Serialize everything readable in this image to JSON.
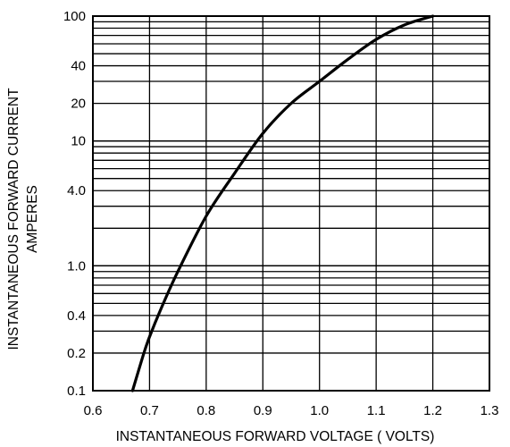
{
  "chart_data": {
    "type": "line",
    "title": "",
    "xlabel": "INSTANTANEOUS FORWARD VOLTAGE ( VOLTS)",
    "ylabel_line1": "INSTANTANEOUS FORWARD CURRENT",
    "ylabel_line2": "AMPERES",
    "xlim": [
      0.6,
      1.3
    ],
    "ylim": [
      0.1,
      100
    ],
    "yscale": "log",
    "grid": true,
    "x_ticks": [
      0.6,
      0.7,
      0.8,
      0.9,
      1.0,
      1.1,
      1.2,
      1.3
    ],
    "x_tick_labels": [
      "0.6",
      "0.7",
      "0.8",
      "0.9",
      "1.0",
      "1.1",
      "1.2",
      "1.3"
    ],
    "y_ticks": [
      0.1,
      0.2,
      0.4,
      1.0,
      4.0,
      10,
      20,
      40,
      100
    ],
    "y_tick_labels": [
      "0.1",
      "0.2",
      "0.4",
      "1.0",
      "4.0",
      "10",
      "20",
      "40",
      "100"
    ],
    "series": [
      {
        "x": [
          0.67,
          0.69,
          0.7,
          0.72,
          0.75,
          0.8,
          0.85,
          0.9,
          0.95,
          1.0,
          1.05,
          1.1,
          1.15,
          1.2
        ],
        "y": [
          0.1,
          0.2,
          0.27,
          0.45,
          0.9,
          2.5,
          5.5,
          11.5,
          20,
          30,
          45,
          65,
          85,
          100
        ]
      }
    ]
  }
}
